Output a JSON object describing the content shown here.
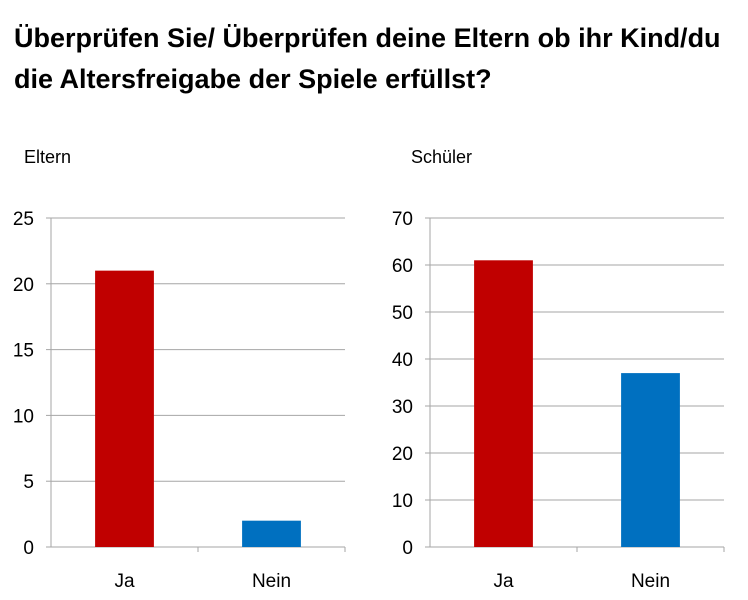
{
  "title": "Überprüfen Sie/ Überprüfen deine Eltern ob ihr Kind/du die Altersfreigabe der Spiele erfüllst?",
  "colors": {
    "ja": "#C00000",
    "nein": "#0070C0",
    "grid": "#A6A6A6"
  },
  "chart_data": [
    {
      "type": "bar",
      "title": "Eltern",
      "categories": [
        "Ja",
        "Nein"
      ],
      "values": [
        21,
        2
      ],
      "ylim": [
        0,
        25
      ],
      "yticks": [
        0,
        5,
        10,
        15,
        20,
        25
      ],
      "grid": true,
      "legend": "none"
    },
    {
      "type": "bar",
      "title": "Schüler",
      "categories": [
        "Ja",
        "Nein"
      ],
      "values": [
        61,
        37
      ],
      "ylim": [
        0,
        70
      ],
      "yticks": [
        0,
        10,
        20,
        30,
        40,
        50,
        60,
        70
      ],
      "grid": true,
      "legend": "none"
    }
  ]
}
